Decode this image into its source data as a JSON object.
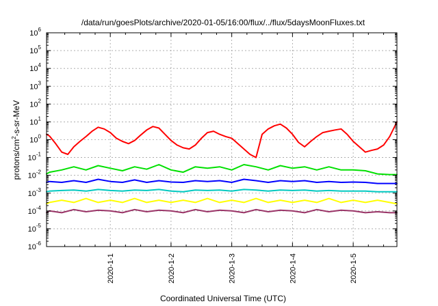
{
  "chart_data": {
    "type": "line",
    "title": "/data/run/goesPlots/archive/2020-01-05/16:00/flux/../flux/5daysMoonFluxes.txt",
    "xlabel": "Coordinated Universal Time (UTC)",
    "ylabel": "protons/cm²-s-sr-MeV",
    "ylabel_parts": {
      "pre": "protons/cm",
      "sup": "2",
      "post": "-s-sr-MeV"
    },
    "yscale": "log",
    "ylim": [
      1e-06,
      1000000.0
    ],
    "xlim": [
      -0.05,
      5.72
    ],
    "grid": true,
    "legend": "none",
    "x_ticks": [
      {
        "x": 1,
        "label": "2020-1-1"
      },
      {
        "x": 2,
        "label": "2020-1-2"
      },
      {
        "x": 3,
        "label": "2020-1-3"
      },
      {
        "x": 4,
        "label": "2020-1-4"
      },
      {
        "x": 5,
        "label": "2020-1-5"
      }
    ],
    "y_ticks": [
      {
        "exp": -6,
        "label": "10",
        "sup": "-6"
      },
      {
        "exp": -5,
        "label": "10",
        "sup": "-5"
      },
      {
        "exp": -4,
        "label": "10",
        "sup": "-4"
      },
      {
        "exp": -3,
        "label": "10",
        "sup": "-3"
      },
      {
        "exp": -2,
        "label": "10",
        "sup": "-2"
      },
      {
        "exp": -1,
        "label": "10",
        "sup": "-1"
      },
      {
        "exp": 0,
        "label": "10",
        "sup": "0"
      },
      {
        "exp": 1,
        "label": "10",
        "sup": "1"
      },
      {
        "exp": 2,
        "label": "10",
        "sup": "2"
      },
      {
        "exp": 3,
        "label": "10",
        "sup": "3"
      },
      {
        "exp": 4,
        "label": "10",
        "sup": "4"
      },
      {
        "exp": 5,
        "label": "10",
        "sup": "5"
      },
      {
        "exp": 6,
        "label": "10",
        "sup": "6"
      }
    ],
    "series": [
      {
        "color": "#ff0000",
        "x": [
          -0.05,
          0.0,
          0.1,
          0.2,
          0.3,
          0.4,
          0.5,
          0.6,
          0.7,
          0.8,
          0.9,
          1.0,
          1.1,
          1.2,
          1.3,
          1.4,
          1.5,
          1.6,
          1.7,
          1.8,
          1.9,
          2.0,
          2.1,
          2.2,
          2.3,
          2.4,
          2.5,
          2.6,
          2.7,
          2.8,
          2.9,
          3.0,
          3.1,
          3.2,
          3.3,
          3.4,
          3.5,
          3.6,
          3.7,
          3.8,
          3.9,
          4.0,
          4.1,
          4.2,
          4.3,
          4.4,
          4.5,
          4.6,
          4.7,
          4.8,
          4.9,
          5.0,
          5.1,
          5.2,
          5.3,
          5.4,
          5.5,
          5.6,
          5.72
        ],
        "y": [
          2.0,
          1.6,
          0.6,
          0.2,
          0.15,
          0.4,
          0.8,
          1.5,
          3.0,
          5.0,
          4.0,
          2.5,
          1.2,
          0.8,
          0.6,
          0.9,
          1.8,
          3.5,
          5.5,
          4.5,
          2.0,
          0.9,
          0.5,
          0.35,
          0.3,
          0.5,
          1.2,
          2.5,
          3.0,
          2.0,
          1.5,
          1.2,
          0.6,
          0.3,
          0.15,
          0.1,
          2.0,
          4.0,
          6.0,
          7.5,
          4.5,
          2.0,
          0.7,
          0.4,
          0.8,
          1.5,
          2.5,
          3.0,
          3.5,
          4.0,
          2.0,
          0.8,
          0.4,
          0.2,
          0.25,
          0.3,
          0.5,
          1.5,
          10.0
        ]
      },
      {
        "color": "#00e000",
        "x": [
          -0.05,
          0.0,
          0.2,
          0.4,
          0.6,
          0.8,
          1.0,
          1.2,
          1.4,
          1.6,
          1.8,
          2.0,
          2.2,
          2.4,
          2.6,
          2.8,
          3.0,
          3.2,
          3.4,
          3.6,
          3.8,
          4.0,
          4.2,
          4.4,
          4.6,
          4.8,
          5.0,
          5.2,
          5.4,
          5.6,
          5.72
        ],
        "y": [
          0.012,
          0.015,
          0.02,
          0.03,
          0.02,
          0.035,
          0.025,
          0.018,
          0.03,
          0.022,
          0.04,
          0.02,
          0.015,
          0.03,
          0.025,
          0.03,
          0.02,
          0.04,
          0.03,
          0.02,
          0.035,
          0.025,
          0.03,
          0.02,
          0.03,
          0.02,
          0.02,
          0.018,
          0.012,
          0.011,
          0.011
        ]
      },
      {
        "color": "#0000ff",
        "x": [
          -0.05,
          0.0,
          0.2,
          0.4,
          0.6,
          0.8,
          1.0,
          1.2,
          1.4,
          1.6,
          1.8,
          2.0,
          2.2,
          2.4,
          2.6,
          2.8,
          3.0,
          3.2,
          3.4,
          3.6,
          3.8,
          4.0,
          4.2,
          4.4,
          4.6,
          4.8,
          5.0,
          5.2,
          5.4,
          5.6,
          5.72
        ],
        "y": [
          0.004,
          0.0045,
          0.004,
          0.005,
          0.004,
          0.006,
          0.0045,
          0.004,
          0.0055,
          0.004,
          0.005,
          0.0042,
          0.004,
          0.005,
          0.0045,
          0.005,
          0.004,
          0.006,
          0.005,
          0.004,
          0.005,
          0.0045,
          0.005,
          0.004,
          0.0045,
          0.004,
          0.0042,
          0.004,
          0.0035,
          0.0035,
          0.0035
        ]
      },
      {
        "color": "#00c8c0",
        "x": [
          -0.05,
          0.0,
          0.2,
          0.4,
          0.6,
          0.8,
          1.0,
          1.2,
          1.4,
          1.6,
          1.8,
          2.0,
          2.2,
          2.4,
          2.6,
          2.8,
          3.0,
          3.2,
          3.4,
          3.6,
          3.8,
          4.0,
          4.2,
          4.4,
          4.6,
          4.8,
          5.0,
          5.2,
          5.4,
          5.6,
          5.72
        ],
        "y": [
          0.0012,
          0.0013,
          0.0014,
          0.0015,
          0.0013,
          0.0016,
          0.0014,
          0.0013,
          0.0015,
          0.0014,
          0.0016,
          0.0013,
          0.0012,
          0.0015,
          0.0014,
          0.0015,
          0.0013,
          0.0016,
          0.0015,
          0.0013,
          0.0015,
          0.0014,
          0.0015,
          0.0013,
          0.0014,
          0.0013,
          0.0013,
          0.0013,
          0.0012,
          0.0012,
          0.0012
        ]
      },
      {
        "color": "#ffff00",
        "x": [
          -0.05,
          0.0,
          0.2,
          0.4,
          0.6,
          0.8,
          1.0,
          1.2,
          1.4,
          1.6,
          1.8,
          2.0,
          2.2,
          2.4,
          2.6,
          2.8,
          3.0,
          3.2,
          3.4,
          3.6,
          3.8,
          4.0,
          4.2,
          4.4,
          4.6,
          4.8,
          5.0,
          5.2,
          5.4,
          5.6,
          5.72
        ],
        "y": [
          0.00025,
          0.0003,
          0.0004,
          0.0003,
          0.0005,
          0.0003,
          0.0004,
          0.0003,
          0.0005,
          0.0003,
          0.0004,
          0.0003,
          0.0004,
          0.0003,
          0.0005,
          0.0003,
          0.0004,
          0.0003,
          0.0005,
          0.0003,
          0.0004,
          0.0003,
          0.0004,
          0.0003,
          0.0005,
          0.0003,
          0.0004,
          0.0003,
          0.0004,
          0.0003,
          0.00025
        ]
      },
      {
        "color": "#993366",
        "x": [
          -0.05,
          0.0,
          0.2,
          0.4,
          0.6,
          0.8,
          1.0,
          1.2,
          1.4,
          1.6,
          1.8,
          2.0,
          2.2,
          2.4,
          2.6,
          2.8,
          3.0,
          3.2,
          3.4,
          3.6,
          3.8,
          4.0,
          4.2,
          4.4,
          4.6,
          4.8,
          5.0,
          5.2,
          5.4,
          5.6,
          5.72
        ],
        "y": [
          8e-05,
          0.0001,
          8e-05,
          0.00012,
          9e-05,
          0.00011,
          0.0001,
          8e-05,
          0.00012,
          9e-05,
          0.00011,
          0.0001,
          8e-05,
          0.00012,
          9e-05,
          0.00011,
          0.0001,
          8e-05,
          0.00012,
          9e-05,
          0.00011,
          0.0001,
          8e-05,
          0.00012,
          9e-05,
          0.00011,
          0.0001,
          8e-05,
          9e-05,
          8e-05,
          8e-05
        ]
      }
    ]
  }
}
